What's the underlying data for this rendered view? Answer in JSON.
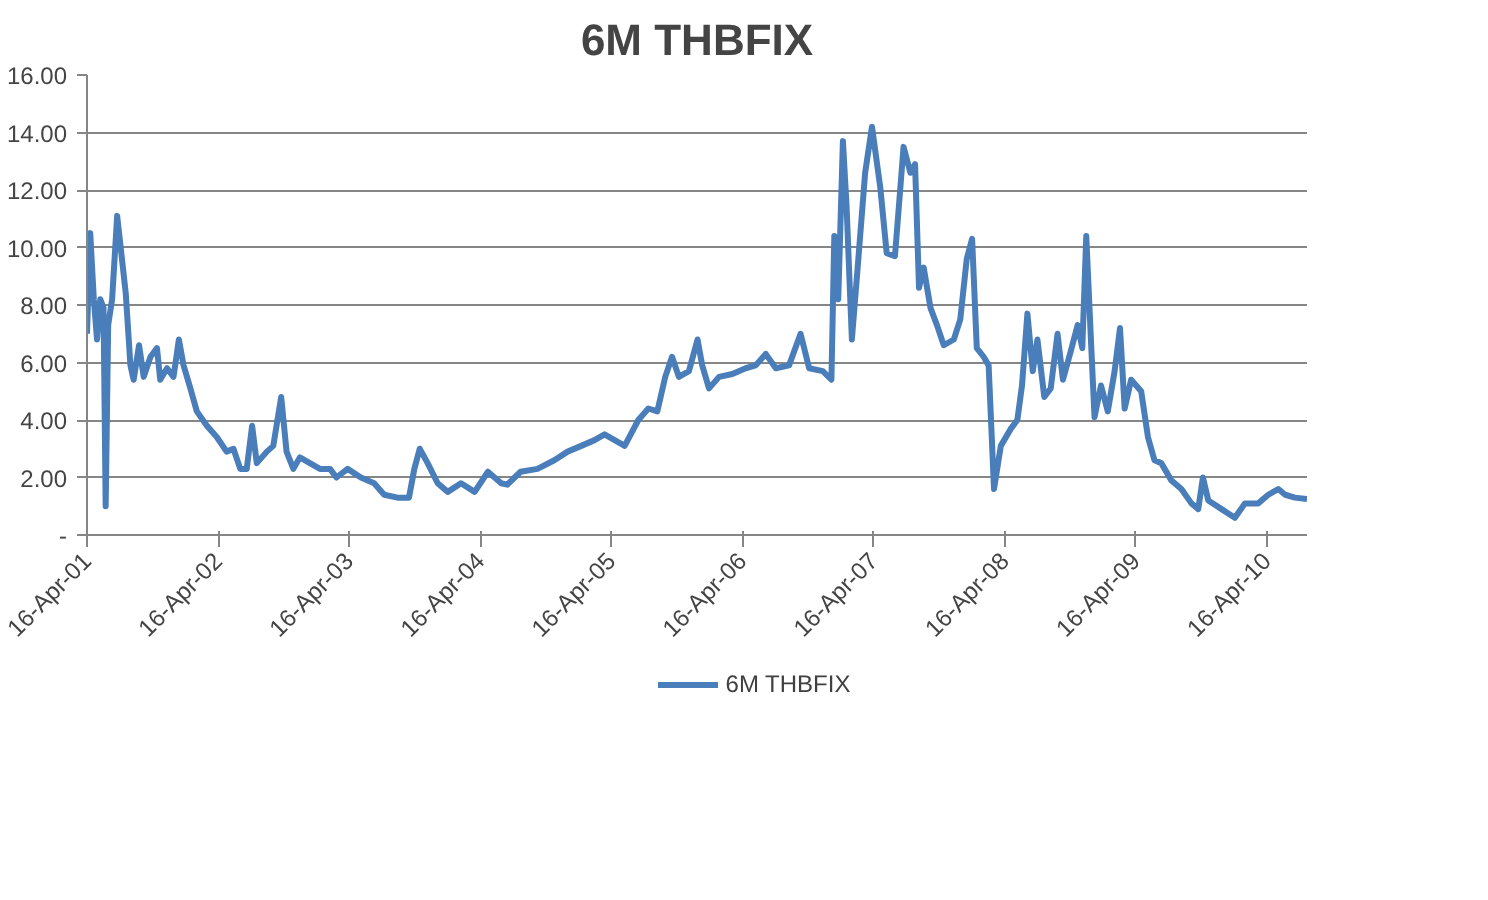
{
  "chart_data": {
    "type": "line",
    "title": "6M THBFIX",
    "legend": "bottom",
    "grid": "y",
    "marker": "none",
    "line_style": "solid",
    "xlim": [
      "2001-04-16",
      "2010-08-06"
    ],
    "ylim": [
      0,
      16
    ],
    "xticks": [
      {
        "value": "2001-04-16",
        "label": "16-Apr-01"
      },
      {
        "value": "2002-04-16",
        "label": "16-Apr-02"
      },
      {
        "value": "2003-04-16",
        "label": "16-Apr-03"
      },
      {
        "value": "2004-04-16",
        "label": "16-Apr-04"
      },
      {
        "value": "2005-04-16",
        "label": "16-Apr-05"
      },
      {
        "value": "2006-04-16",
        "label": "16-Apr-06"
      },
      {
        "value": "2007-04-16",
        "label": "16-Apr-07"
      },
      {
        "value": "2008-04-16",
        "label": "16-Apr-08"
      },
      {
        "value": "2009-04-16",
        "label": "16-Apr-09"
      },
      {
        "value": "2010-04-16",
        "label": "16-Apr-10"
      }
    ],
    "yticks": [
      {
        "value": 0,
        "label": "-"
      },
      {
        "value": 2,
        "label": "2.00"
      },
      {
        "value": 4,
        "label": "4.00"
      },
      {
        "value": 6,
        "label": "6.00"
      },
      {
        "value": 8,
        "label": "8.00"
      },
      {
        "value": 10,
        "label": "10.00"
      },
      {
        "value": 12,
        "label": "12.00"
      },
      {
        "value": 14,
        "label": "14.00"
      },
      {
        "value": 16,
        "label": "16.00"
      }
    ],
    "series": [
      {
        "name": "6M THBFIX",
        "color": "#4a7ebb",
        "x": [
          "2001-04-16",
          "2001-04-25",
          "2001-05-05",
          "2001-05-14",
          "2001-05-23",
          "2001-06-01",
          "2001-06-07",
          "2001-06-14",
          "2001-06-25",
          "2001-07-09",
          "2001-07-18",
          "2001-08-02",
          "2001-08-15",
          "2001-08-24",
          "2001-09-08",
          "2001-09-21",
          "2001-10-10",
          "2001-10-28",
          "2001-11-06",
          "2001-11-25",
          "2001-12-13",
          "2001-12-28",
          "2002-01-10",
          "2002-01-29",
          "2002-02-16",
          "2002-03-16",
          "2002-04-13",
          "2002-05-10",
          "2002-05-29",
          "2002-06-17",
          "2002-07-05",
          "2002-07-20",
          "2002-08-02",
          "2002-08-30",
          "2002-09-17",
          "2002-10-09",
          "2002-10-24",
          "2002-11-12",
          "2002-11-30",
          "2002-12-28",
          "2003-01-25",
          "2003-02-22",
          "2003-03-12",
          "2003-04-12",
          "2003-05-19",
          "2003-06-25",
          "2003-07-23",
          "2003-08-29",
          "2003-09-30",
          "2003-10-15",
          "2003-10-30",
          "2003-11-21",
          "2003-12-19",
          "2004-01-16",
          "2004-02-22",
          "2004-03-31",
          "2004-05-07",
          "2004-06-13",
          "2004-06-30",
          "2004-08-06",
          "2004-09-22",
          "2004-11-08",
          "2004-12-15",
          "2005-01-22",
          "2005-02-28",
          "2005-03-28",
          "2005-04-25",
          "2005-05-23",
          "2005-06-30",
          "2005-07-28",
          "2005-08-22",
          "2005-09-13",
          "2005-10-02",
          "2005-10-21",
          "2005-11-18",
          "2005-12-12",
          "2005-12-25",
          "2006-01-13",
          "2006-02-10",
          "2006-03-19",
          "2006-04-25",
          "2006-05-23",
          "2006-06-20",
          "2006-07-18",
          "2006-08-24",
          "2006-09-25",
          "2006-10-19",
          "2006-11-26",
          "2006-12-20",
          "2006-12-28",
          "2007-01-08",
          "2007-01-21",
          "2007-01-31",
          "2007-02-15",
          "2007-03-05",
          "2007-03-24",
          "2007-04-12",
          "2007-05-05",
          "2007-05-23",
          "2007-06-15",
          "2007-07-09",
          "2007-07-28",
          "2007-08-10",
          "2007-08-21",
          "2007-09-03",
          "2007-09-22",
          "2007-10-10",
          "2007-10-29",
          "2007-11-26",
          "2007-12-14",
          "2008-01-01",
          "2008-01-16",
          "2008-01-29",
          "2008-02-17",
          "2008-03-02",
          "2008-03-17",
          "2008-04-05",
          "2008-05-03",
          "2008-05-21",
          "2008-06-03",
          "2008-06-18",
          "2008-07-03",
          "2008-07-16",
          "2008-08-04",
          "2008-08-22",
          "2008-09-10",
          "2008-09-25",
          "2008-10-17",
          "2008-11-05",
          "2008-11-18",
          "2008-11-29",
          "2008-12-12",
          "2008-12-22",
          "2009-01-09",
          "2009-01-28",
          "2009-02-16",
          "2009-03-03",
          "2009-03-16",
          "2009-04-03",
          "2009-05-01",
          "2009-05-20",
          "2009-06-07",
          "2009-06-26",
          "2009-07-24",
          "2009-08-21",
          "2009-09-18",
          "2009-10-07",
          "2009-10-20",
          "2009-11-04",
          "2009-12-11",
          "2010-01-17",
          "2010-02-14",
          "2010-03-23",
          "2010-04-20",
          "2010-05-18",
          "2010-06-06",
          "2010-07-03",
          "2010-08-06"
        ],
        "values": [
          7.0,
          10.5,
          8.2,
          6.8,
          8.2,
          7.9,
          1.0,
          7.3,
          8.2,
          11.1,
          10.1,
          8.4,
          5.9,
          5.4,
          6.6,
          5.5,
          6.2,
          6.5,
          5.4,
          5.8,
          5.5,
          6.8,
          5.9,
          5.1,
          4.3,
          3.8,
          3.4,
          2.9,
          3.0,
          2.3,
          2.3,
          3.8,
          2.5,
          2.9,
          3.1,
          4.8,
          2.9,
          2.3,
          2.7,
          2.5,
          2.3,
          2.3,
          2.0,
          2.3,
          2.0,
          1.8,
          1.4,
          1.3,
          1.3,
          2.3,
          3.0,
          2.5,
          1.8,
          1.5,
          1.8,
          1.5,
          2.2,
          1.8,
          1.75,
          2.2,
          2.3,
          2.6,
          2.9,
          3.1,
          3.3,
          3.5,
          3.3,
          3.1,
          4.0,
          4.4,
          4.3,
          5.5,
          6.2,
          5.5,
          5.7,
          6.8,
          5.9,
          5.1,
          5.5,
          5.6,
          5.8,
          5.9,
          6.3,
          5.8,
          5.9,
          7.0,
          5.8,
          5.7,
          5.4,
          10.4,
          8.2,
          13.7,
          11.5,
          6.8,
          9.6,
          12.6,
          14.2,
          12.1,
          9.8,
          9.7,
          13.5,
          12.6,
          12.9,
          8.6,
          9.3,
          7.9,
          7.3,
          6.6,
          6.8,
          7.5,
          9.6,
          10.3,
          6.5,
          6.2,
          5.9,
          1.6,
          3.1,
          3.7,
          4.0,
          5.2,
          7.7,
          5.7,
          6.8,
          4.8,
          5.1,
          7.0,
          5.4,
          6.4,
          7.3,
          6.5,
          10.4,
          6.8,
          4.1,
          5.2,
          4.3,
          5.7,
          7.2,
          4.4,
          5.4,
          5.0,
          3.4,
          2.6,
          2.5,
          1.9,
          1.6,
          1.1,
          0.9,
          2.0,
          1.2,
          0.9,
          0.6,
          1.1,
          1.1,
          1.4,
          1.6,
          1.4,
          1.3,
          1.25
        ]
      }
    ]
  }
}
